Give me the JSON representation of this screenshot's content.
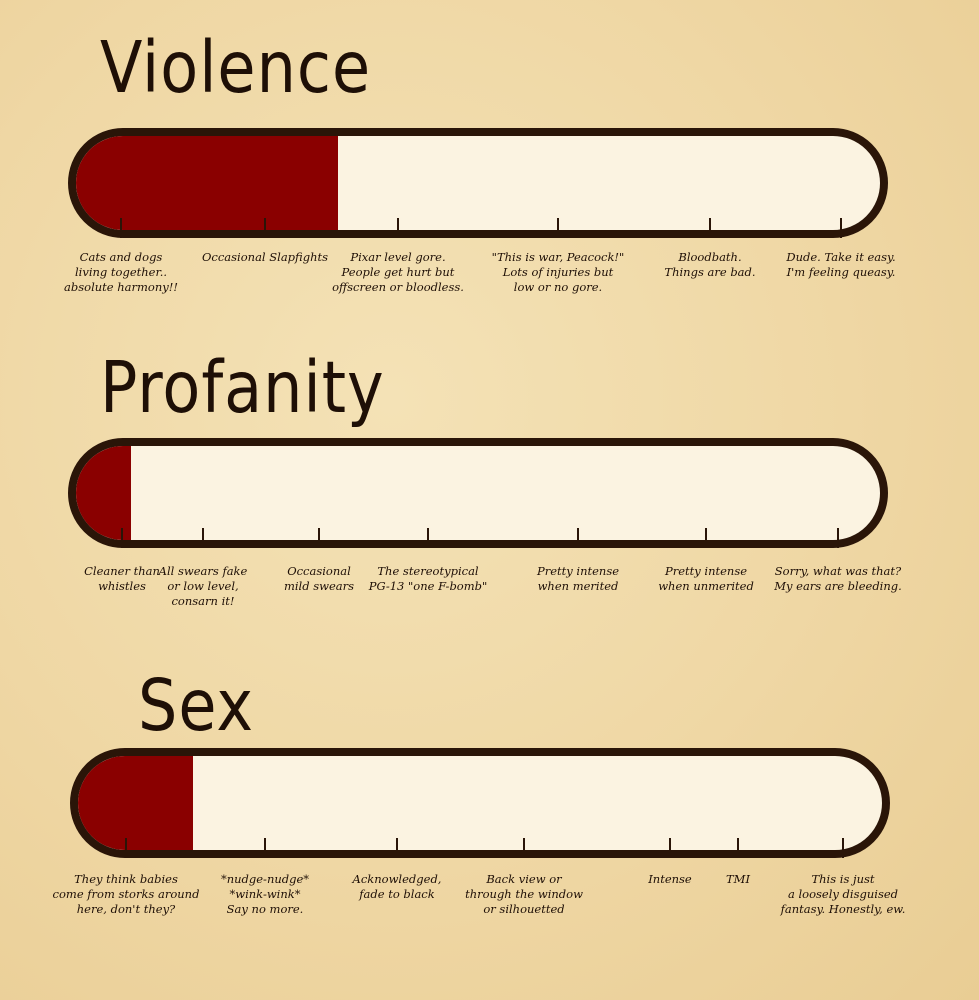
{
  "colors": {
    "outline": "#2a1508",
    "fill": "#8a0000",
    "track": "#fbf3e1",
    "background": "#efd7a4"
  },
  "meters": [
    {
      "title": "Violence",
      "fill_fraction": 0.32,
      "labels": [
        "Cats and dogs\nliving together..\nabsolute harmony!!",
        "Occasional Slapfights",
        "Pixar level gore.\nPeople get hurt but\noffscreen or bloodless.",
        "\"This is war, Peacock!\"\nLots of injuries but\nlow or no gore.",
        "Bloodbath.\nThings are bad.",
        "Dude. Take it easy.\nI'm feeling queasy."
      ]
    },
    {
      "title": "Profanity",
      "fill_fraction": 0.067,
      "labels": [
        "Cleaner than\nwhistles",
        "All swears fake\nor low level,\nconsarn it!",
        "Occasional\nmild swears",
        "The stereotypical\nPG-13 \"one F-bomb\"",
        "Pretty intense\nwhen merited",
        "Pretty intense\nwhen unmerited",
        "Sorry, what was that?\nMy ears are bleeding."
      ]
    },
    {
      "title": "Sex",
      "fill_fraction": 0.14,
      "labels": [
        "They think babies\ncome from storks around\nhere, don't they?",
        "*nudge-nudge*\n*wink-wink*\nSay no more.",
        "Acknowledged,\nfade to black",
        "Back view or\nthrough the window\nor silhouetted",
        "Intense",
        "TMI",
        "This is just\na loosely disguised\nfantasy. Honestly, ew."
      ]
    }
  ]
}
